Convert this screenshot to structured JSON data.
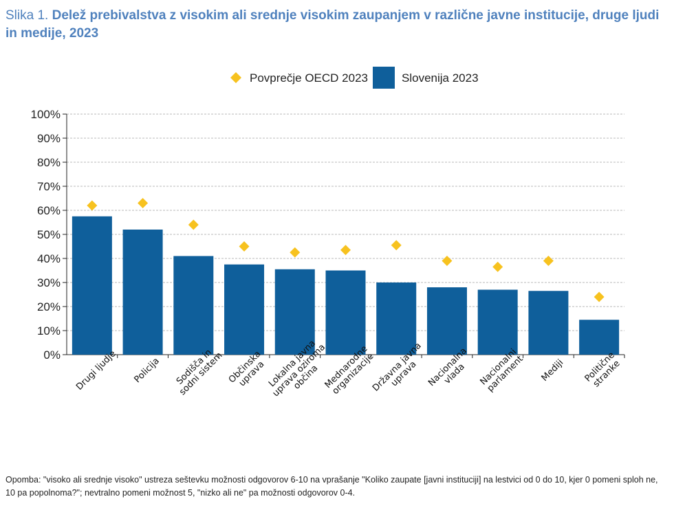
{
  "figure": {
    "title_prefix": "Slika 1.",
    "title": "Delež prebivalstva z visokim ali srednje visokim zaupanjem v različne javne institucije, druge ljudi in medije, 2023",
    "note": "Opomba: \"visoko ali srednje visoko\" ustreza seštevku možnosti odgovorov 6-10 na vprašanje \"Koliko zaupate [javni instituciji] na lestvici od 0 do 10, kjer 0 pomeni sploh ne, 10 pa popolnoma?\"; nevtralno pomeni možnost 5, \"nizko ali ne\" pa možnosti odgovorov 0-4."
  },
  "colors": {
    "bar": "#0f5f9b",
    "marker": "#f7c21f",
    "title": "#4f81bd",
    "grid": "#b8b8b8",
    "axis": "#222222"
  },
  "chart_data": {
    "type": "bar",
    "title": "Delež prebivalstva z visokim ali srednje visokim zaupanjem v različne javne institucije, druge ljudi in medije, 2023",
    "xlabel": "",
    "ylabel": "",
    "ylim": [
      0,
      100
    ],
    "yticks": [
      "0%",
      "10%",
      "20%",
      "30%",
      "40%",
      "50%",
      "60%",
      "70%",
      "80%",
      "90%",
      "100%"
    ],
    "grid": true,
    "legend_position": "top-center",
    "categories": [
      [
        "Drugi ljudje"
      ],
      [
        "Policija"
      ],
      [
        "Sodišča in",
        "sodni sistem"
      ],
      [
        "Občinska",
        "uprava"
      ],
      [
        "Lokalna javna",
        "uprava oziroma",
        "občina"
      ],
      [
        "Mednarodne",
        "organizacije"
      ],
      [
        "Državna javna",
        "uprava"
      ],
      [
        "Nacionalna",
        "vlada"
      ],
      [
        "Nacionalni",
        "parlament"
      ],
      [
        "Mediji"
      ],
      [
        "Politične",
        "stranke"
      ]
    ],
    "series": [
      {
        "name": "Slovenija 2023",
        "kind": "bar",
        "values": [
          57.5,
          52,
          41,
          37.5,
          35.5,
          35,
          30,
          28,
          27,
          26.5,
          14.5
        ]
      },
      {
        "name": "Povprečje OECD 2023",
        "kind": "marker",
        "values": [
          62,
          63,
          54,
          45,
          42.5,
          43.5,
          45.5,
          39,
          36.5,
          39,
          24
        ]
      }
    ]
  }
}
